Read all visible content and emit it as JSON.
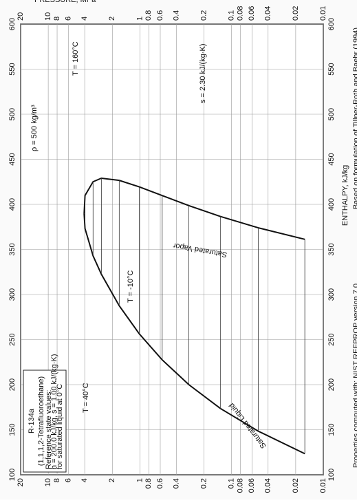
{
  "chart_data": {
    "type": "line",
    "title": "R-134a",
    "subtitle": "(1,1,1,2-Tetrafluoroethane)",
    "reference_lines": [
      "Reference state values:",
      "h = 200.0 kJ/kg, s = 1.00 kJ/(kg·K)",
      "for saturated liquid at 0°C"
    ],
    "x_label": "ENTHALPY, kJ/kg",
    "y_label": "PRESSURE, MPa",
    "footer_left": "Properties computed with: NIST REFPROP version 7.0",
    "footer_right": "Based on formulation of Tillner-Roth and Baehr (1994)",
    "annotations": [
      "T = 40°C",
      "T = -10°C",
      "T = 160°C",
      "ρ = 500 kg/m³",
      "s = 2.30 kJ/(kg·K)"
    ],
    "xlim": [
      100,
      600
    ],
    "xticks": [
      100,
      150,
      200,
      250,
      300,
      350,
      400,
      450,
      500,
      550,
      600
    ],
    "ylim": [
      0.01,
      20
    ],
    "y_log": true,
    "yticks": [
      20,
      10,
      8,
      6,
      4,
      2,
      1,
      0.8,
      0.6,
      0.4,
      0.2,
      0.1,
      0.08,
      0.06,
      0.04,
      0.02,
      0.01
    ],
    "grid": true,
    "series": [
      {
        "name": "Saturated Liquid",
        "color": "#111111",
        "x": [
          123.4,
          148.4,
          173.6,
          200,
          227.5,
          256.4,
          287.5,
          322.5,
          342.9,
          373.3,
          389.6
        ],
        "values": [
          0.0159,
          0.0512,
          0.1327,
          0.2928,
          0.5717,
          1.0166,
          1.6818,
          2.6332,
          3.2442,
          3.9724,
          4.059
        ]
      },
      {
        "name": "Saturated Vapor",
        "color": "#111111",
        "x": [
          361.2,
          374.0,
          386.6,
          398.6,
          409.8,
          419.4,
          426.6,
          429.0,
          425.1,
          409.8,
          389.6
        ],
        "values": [
          0.0159,
          0.0512,
          0.1327,
          0.2928,
          0.5717,
          1.0166,
          1.6818,
          2.6332,
          3.2442,
          3.9724,
          4.059
        ]
      }
    ]
  }
}
